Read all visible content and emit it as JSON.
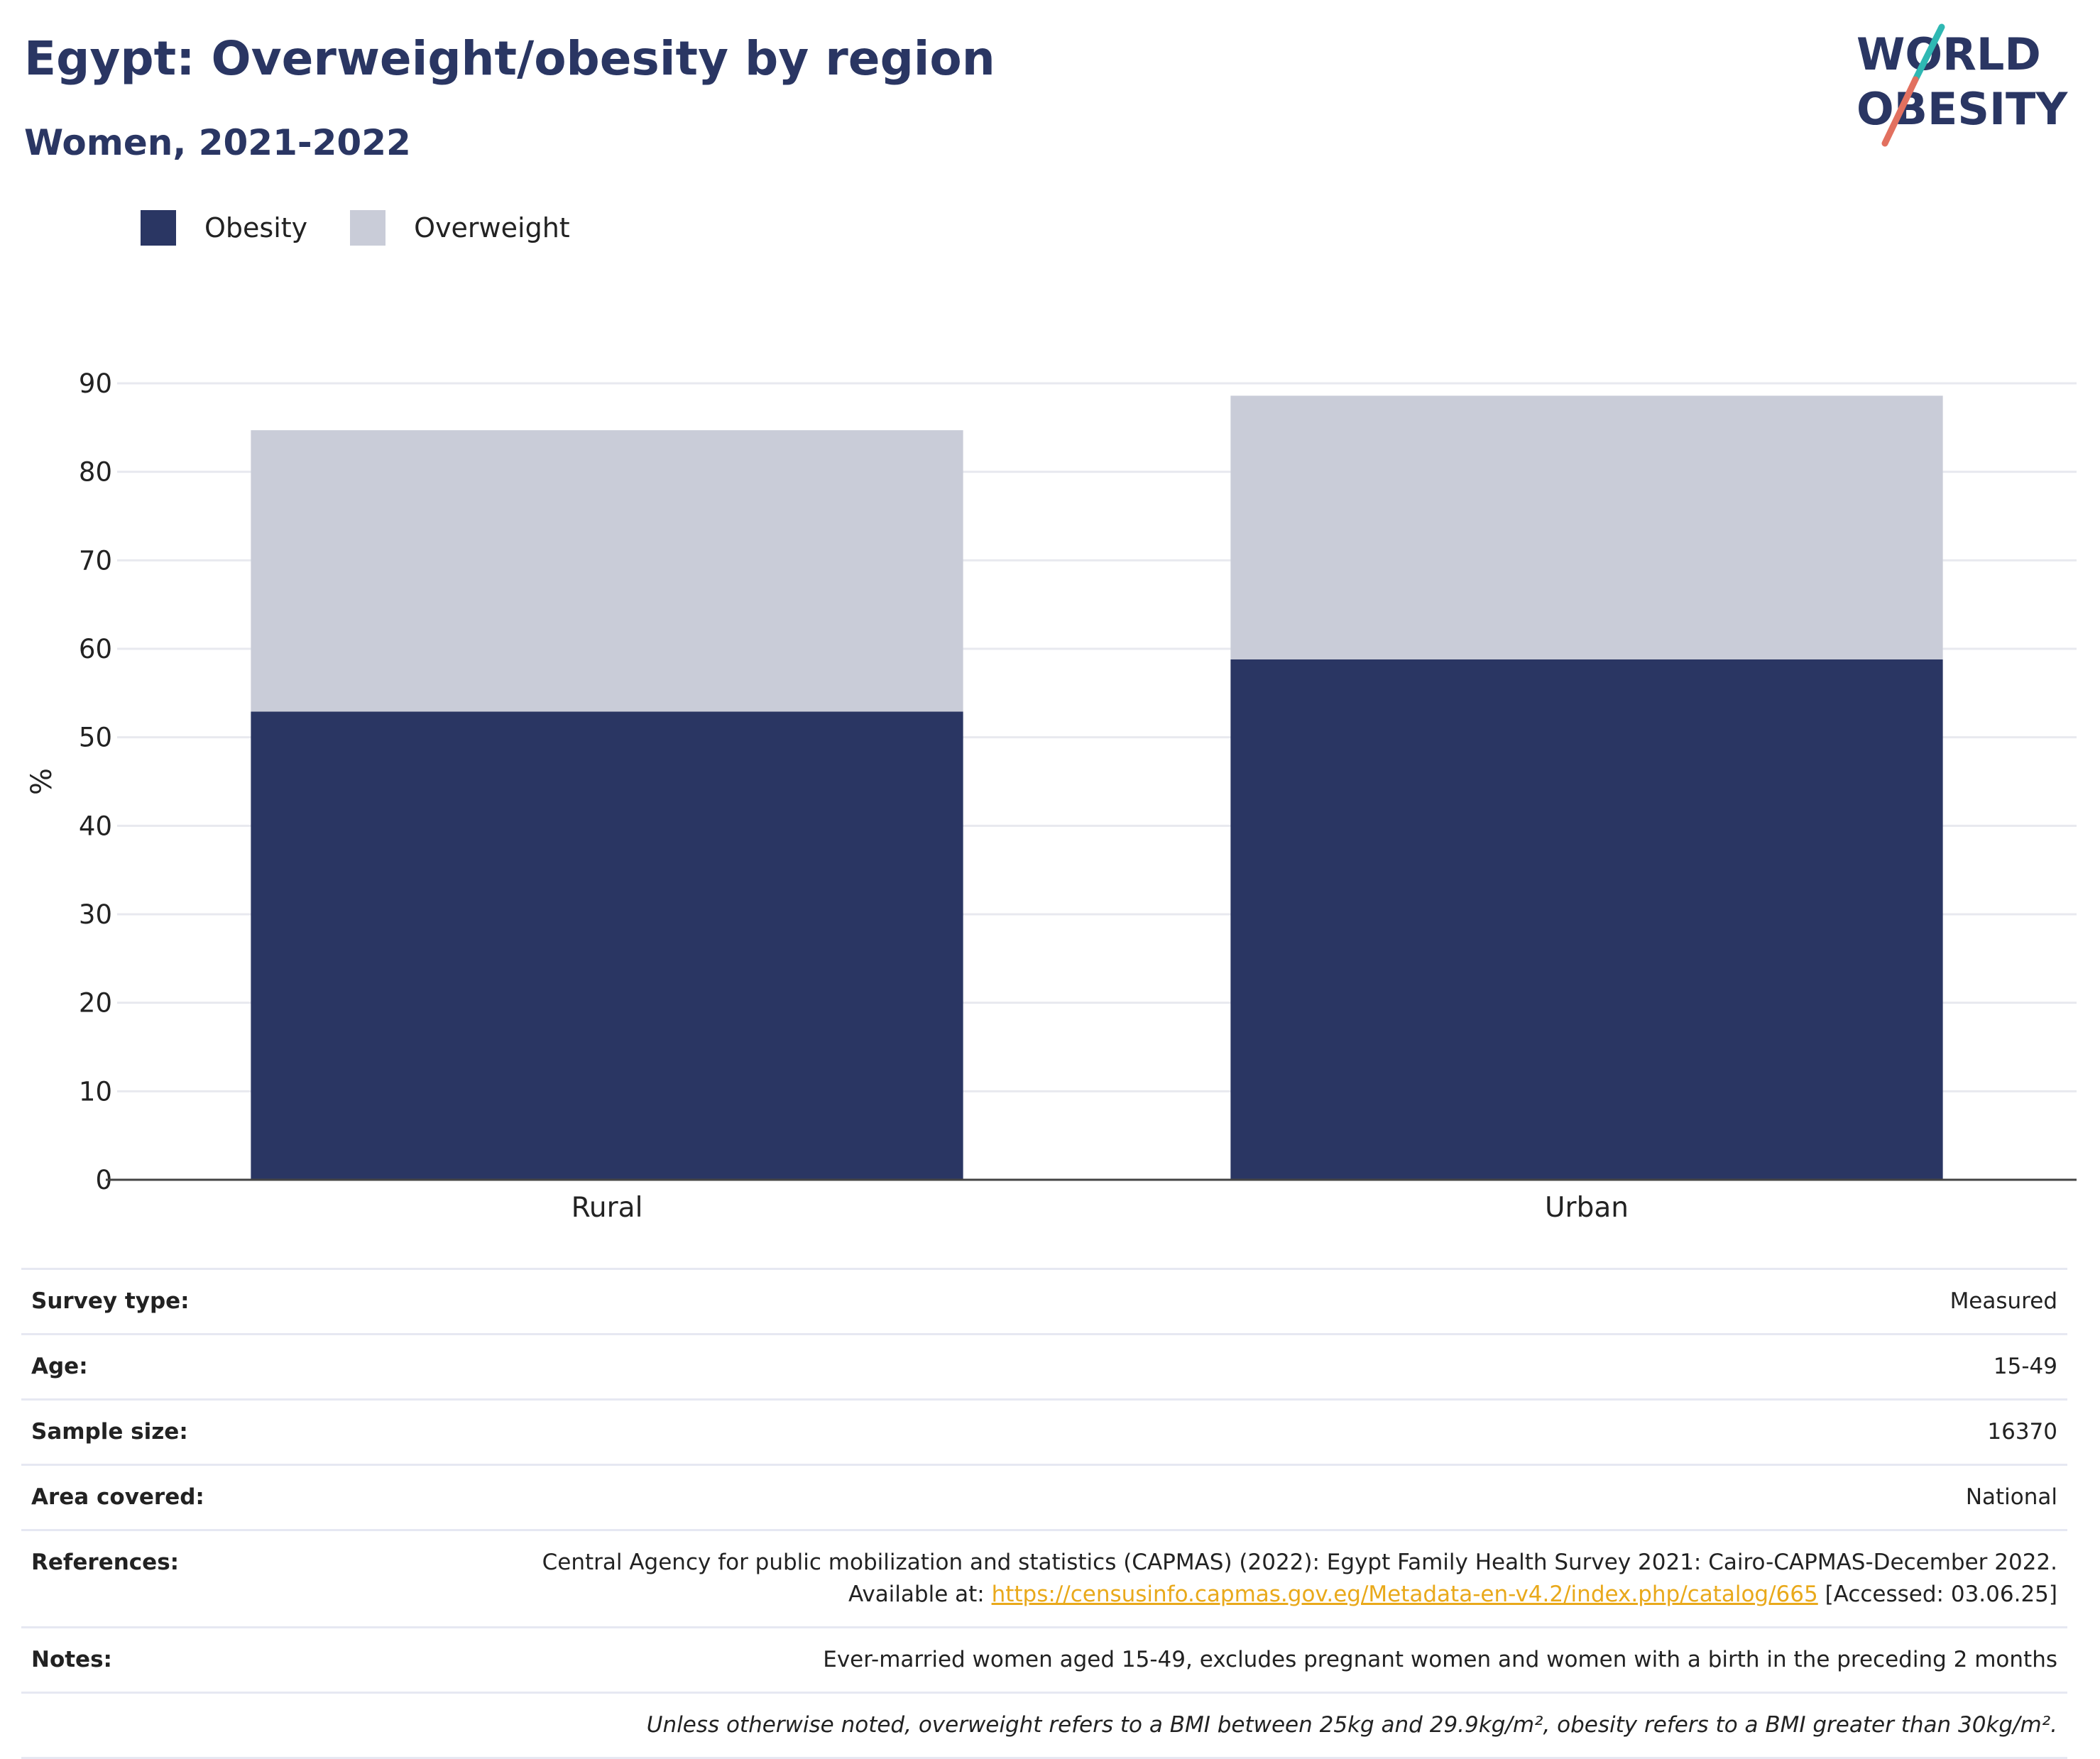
{
  "header": {
    "title": "Egypt: Overweight/obesity by region",
    "subtitle": "Women, 2021-2022"
  },
  "logo": {
    "line1": "WORLD",
    "line2": "OBESITY",
    "icon": "world-obesity-logo",
    "colors": {
      "text": "#2a3663",
      "stroke_top": "#2fb8b3",
      "stroke_bottom": "#e2705f"
    }
  },
  "legend": {
    "position": "top-left",
    "items": [
      {
        "label": "Obesity",
        "color": "#2a3663"
      },
      {
        "label": "Overweight",
        "color": "#c9ccd8"
      }
    ]
  },
  "chart_data": {
    "type": "bar",
    "stacked": true,
    "categories": [
      "Rural",
      "Urban"
    ],
    "series": [
      {
        "name": "Obesity",
        "values": [
          52.9,
          58.8
        ],
        "color": "#2a3663"
      },
      {
        "name": "Overweight",
        "values": [
          31.8,
          29.8
        ],
        "color": "#c9ccd8"
      }
    ],
    "title": "Egypt: Overweight/obesity by region",
    "subtitle": "Women, 2021-2022",
    "xlabel": "",
    "ylabel": "%",
    "ylim": [
      0,
      90
    ],
    "yticks": [
      "0",
      "10",
      "20",
      "30",
      "40",
      "50",
      "60",
      "70",
      "80",
      "90"
    ],
    "grid": true,
    "legend_position": "top-left"
  },
  "info": {
    "rows": [
      {
        "key": "Survey type:",
        "value": "Measured"
      },
      {
        "key": "Age:",
        "value": "15-49"
      },
      {
        "key": "Sample size:",
        "value": "16370"
      },
      {
        "key": "Area covered:",
        "value": "National"
      },
      {
        "key": "References:",
        "value_pre": "Central Agency for public mobilization and statistics (CAPMAS) (2022): Egypt Family Health Survey 2021: Cairo-CAPMAS-December 2022. Available at: ",
        "link": "https://censusinfo.capmas.gov.eg/Metadata-en-v4.2/index.php/catalog/665",
        "value_post": " [Accessed: 03.06.25]"
      },
      {
        "key": "Notes:",
        "value": "Ever-married women aged 15-49, excludes pregnant women and women with a birth in the preceding 2 months"
      }
    ],
    "footnote": "Unless otherwise noted, overweight refers to a BMI between 25kg and 29.9kg/m², obesity refers to a BMI greater than 30kg/m²."
  }
}
